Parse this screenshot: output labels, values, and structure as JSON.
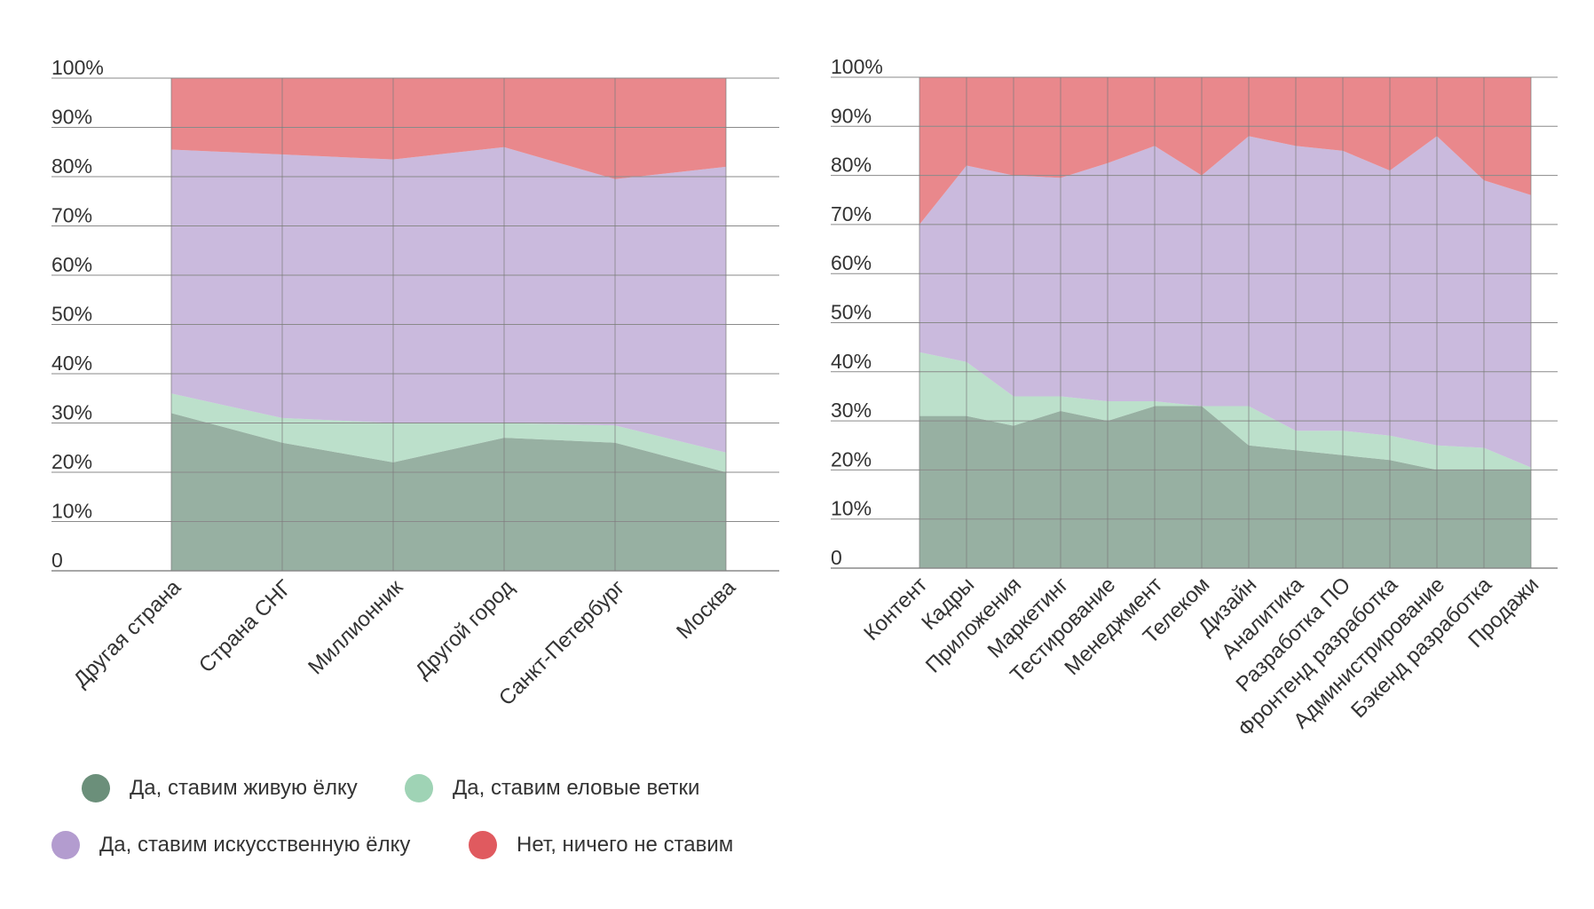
{
  "colors": {
    "live_tree": "#6b8f7a",
    "branches": "#9fd3b5",
    "artificial": "#b39ccf",
    "nothing": "#e05a5f"
  },
  "legend": [
    {
      "label": "Да, ставим живую ёлку",
      "color": "#6b8f7a"
    },
    {
      "label": "Да, ставим еловые ветки",
      "color": "#9fd3b5"
    },
    {
      "label": "Да, ставим искусственную ёлку",
      "color": "#b39ccf"
    },
    {
      "label": "Нет, ничего не ставим",
      "color": "#e05a5f"
    }
  ],
  "chart_data": [
    {
      "type": "area",
      "stacked": true,
      "title": "",
      "xlabel": "",
      "ylabel": "",
      "ylim": [
        0,
        100
      ],
      "yticks": [
        "0",
        "10%",
        "20%",
        "30%",
        "40%",
        "50%",
        "60%",
        "70%",
        "80%",
        "90%",
        "100%"
      ],
      "categories": [
        "Другая страна",
        "Страна СНГ",
        "Миллионник",
        "Другой город",
        "Санкт-Петербург",
        "Москва"
      ],
      "series": [
        {
          "name": "Да, ставим живую ёлку",
          "values": [
            32,
            26,
            22,
            27,
            26,
            20
          ]
        },
        {
          "name": "Да, ставим еловые ветки",
          "values": [
            4,
            5,
            8,
            3,
            3.5,
            4
          ]
        },
        {
          "name": "Да, ставим искусственную ёлку",
          "values": [
            49.5,
            53.5,
            53.5,
            56,
            50,
            58
          ]
        },
        {
          "name": "Нет, ничего не ставим",
          "values": [
            14.5,
            15.5,
            16.5,
            14,
            20.5,
            18
          ]
        }
      ]
    },
    {
      "type": "area",
      "stacked": true,
      "title": "",
      "xlabel": "",
      "ylabel": "",
      "ylim": [
        0,
        100
      ],
      "yticks": [
        "0",
        "10%",
        "20%",
        "30%",
        "40%",
        "50%",
        "60%",
        "70%",
        "80%",
        "90%",
        "100%"
      ],
      "categories": [
        "Контент",
        "Кадры",
        "Приложения",
        "Маркетинг",
        "Тестирование",
        "Менеджмент",
        "Телеком",
        "Дизайн",
        "Аналитика",
        "Разработка ПО",
        "Фронтенд разработка",
        "Администрирование",
        "Бэкенд разработка",
        "Продажи"
      ],
      "series": [
        {
          "name": "Да, ставим живую ёлку",
          "values": [
            31,
            31,
            29,
            32,
            30,
            33,
            33,
            25,
            24,
            23,
            22,
            20,
            20,
            20
          ]
        },
        {
          "name": "Да, ставим еловые ветки",
          "values": [
            13,
            11,
            6,
            3,
            4,
            1,
            0,
            8,
            4,
            5,
            5,
            5,
            4.5,
            0.5
          ]
        },
        {
          "name": "Да, ставим искусственную ёлку",
          "values": [
            26,
            40,
            45,
            44.5,
            48.5,
            52,
            47,
            55,
            58,
            57,
            54,
            63,
            54.5,
            55.5
          ]
        },
        {
          "name": "Нет, ничего не ставим",
          "values": [
            30,
            18,
            20,
            20.5,
            17.5,
            14,
            20,
            12,
            14,
            15,
            19,
            12,
            21,
            24
          ]
        }
      ]
    }
  ]
}
